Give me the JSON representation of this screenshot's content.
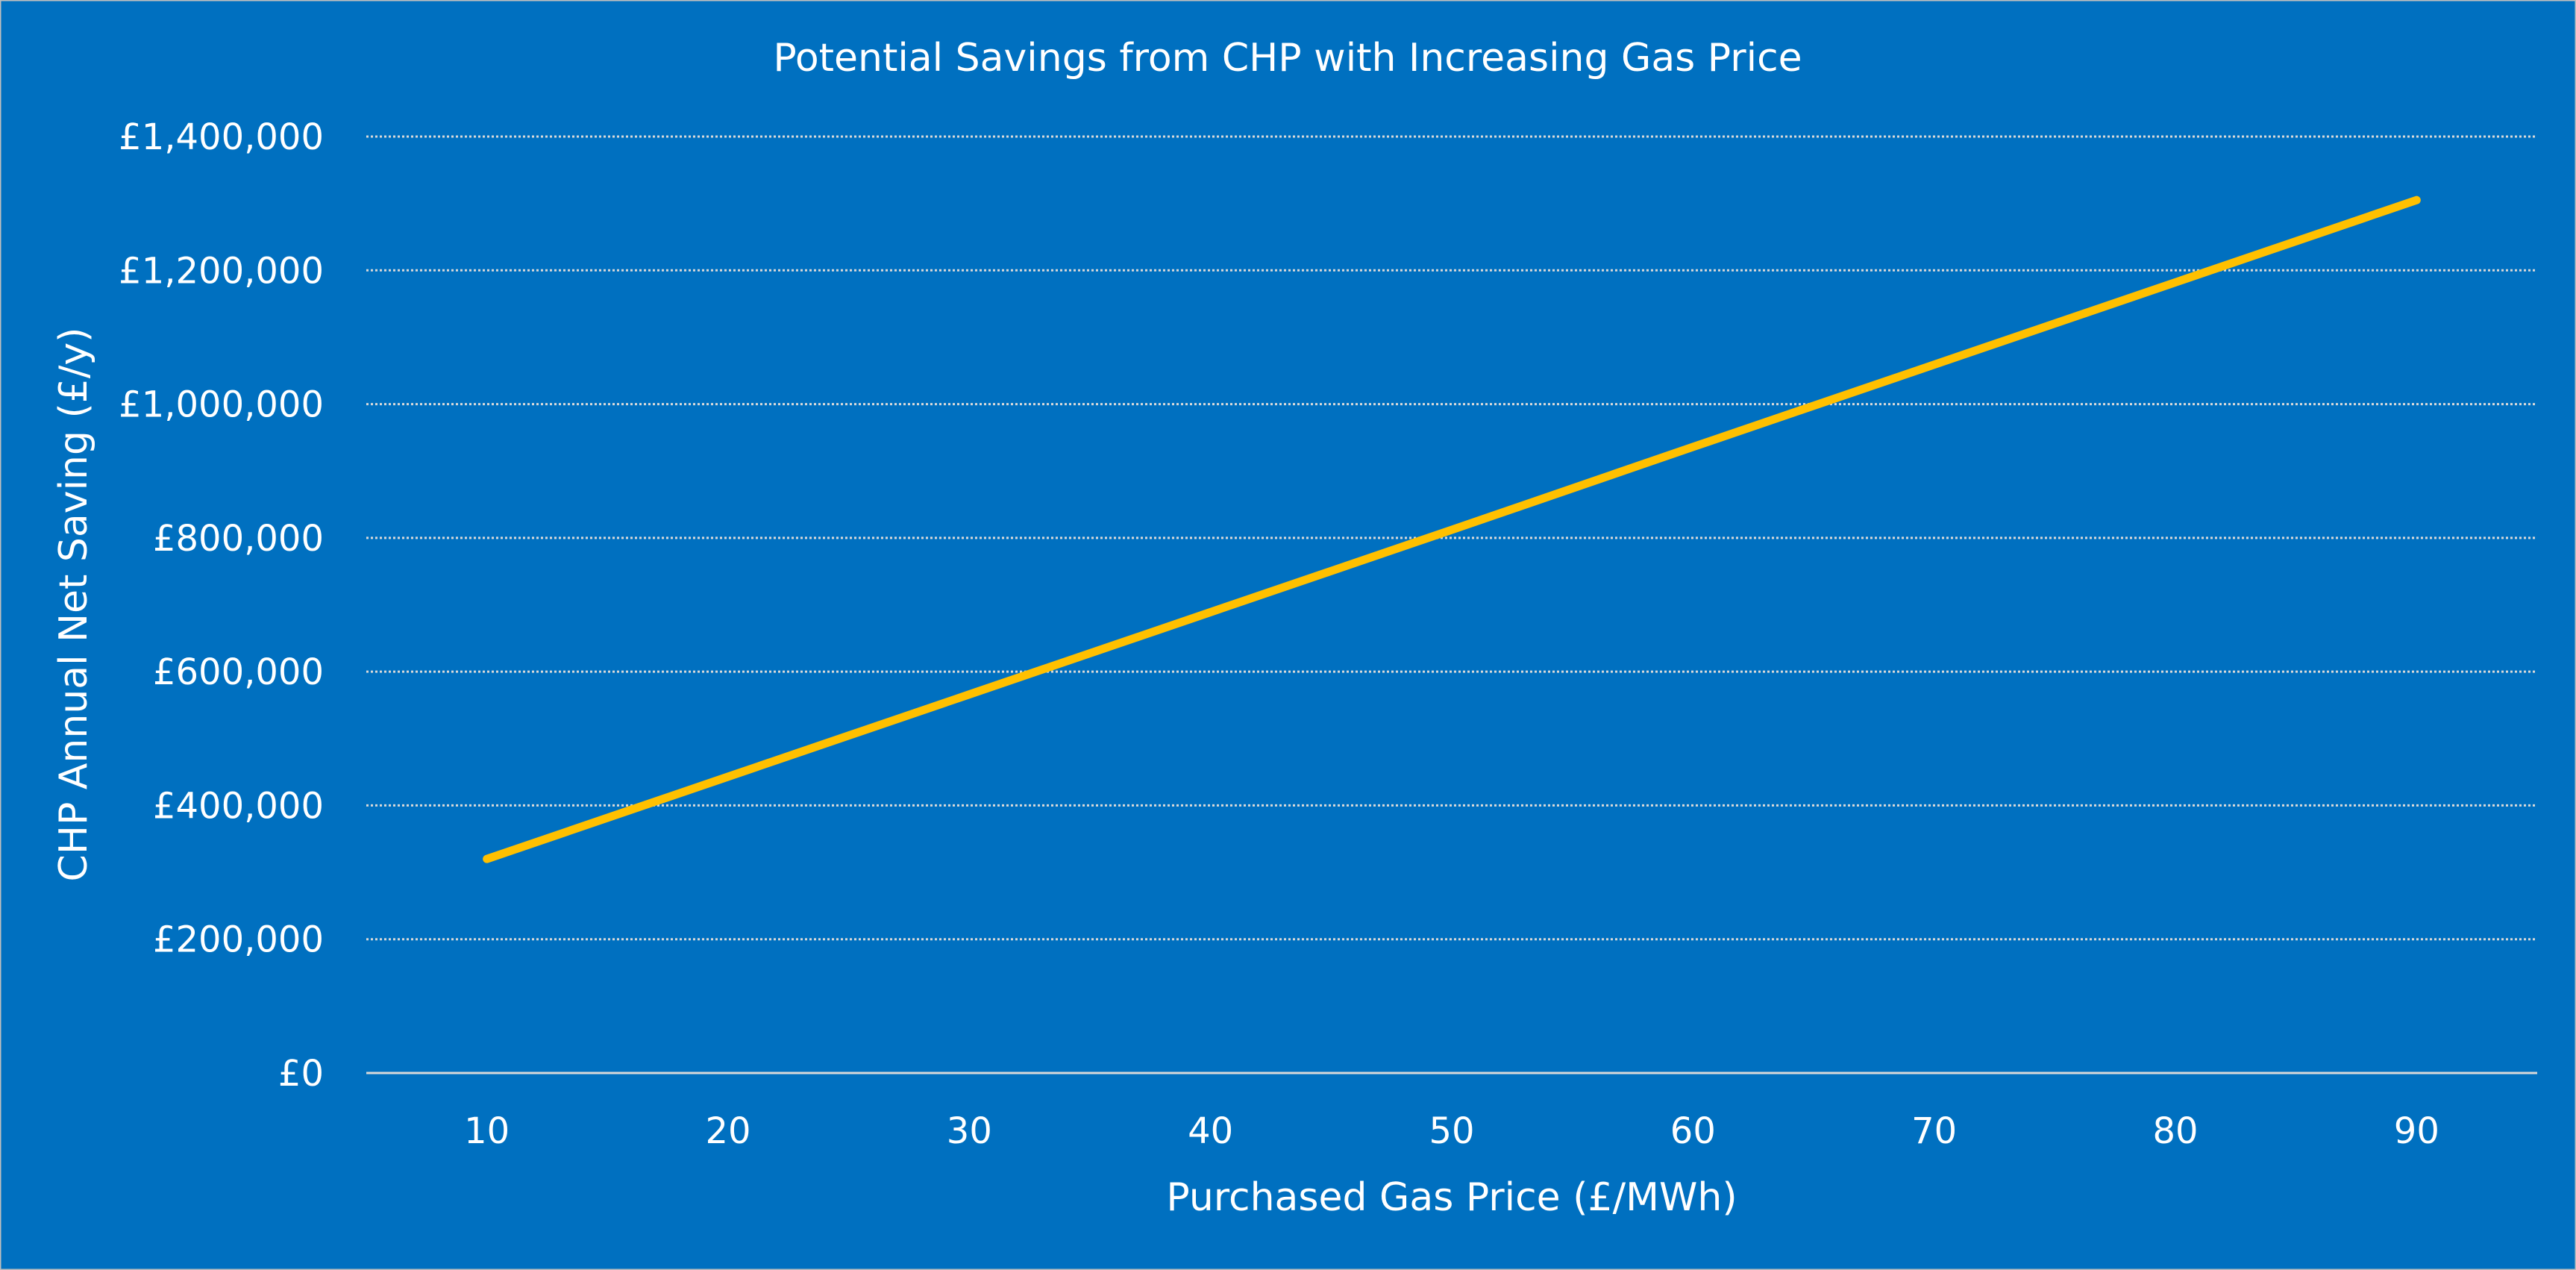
{
  "chart_data": {
    "type": "line",
    "title": "Potential Savings from CHP with Increasing Gas Price",
    "xlabel": "Purchased Gas Price (£/MWh)",
    "ylabel": "CHP Annual Net Saving (£/y)",
    "categories": [
      10,
      20,
      30,
      40,
      50,
      60,
      70,
      80,
      90
    ],
    "series": [
      {
        "values": [
          320000,
          443000,
          566000,
          689000,
          812000,
          936000,
          1059000,
          1182000,
          1305000
        ],
        "color": "#FFC000"
      }
    ],
    "ylim": [
      0,
      1400000
    ],
    "yticks": [
      0,
      200000,
      400000,
      600000,
      800000,
      1000000,
      1200000,
      1400000
    ],
    "ytick_labels": [
      "£0",
      "£200,000",
      "£400,000",
      "£600,000",
      "£800,000",
      "£1,000,000",
      "£1,200,000",
      "£1,400,000"
    ],
    "grid": true,
    "legend": "none",
    "colors": {
      "background": "#0070C0",
      "line": "#FFC000",
      "grid": "#D9D9D9",
      "text": "#FFFFFF"
    }
  }
}
